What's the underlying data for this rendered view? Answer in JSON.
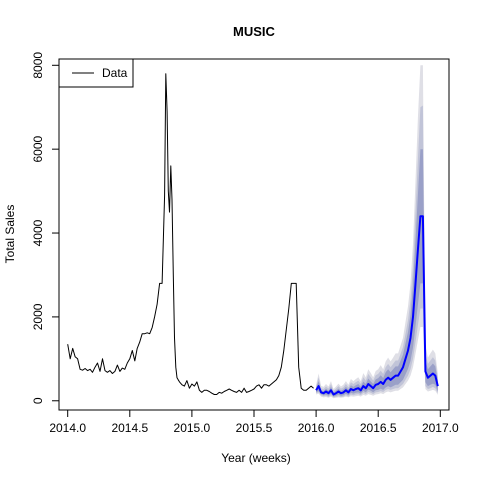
{
  "chart_data": {
    "type": "line",
    "title": "MUSIC",
    "xlabel": "Year (weeks)",
    "ylabel": "Total Sales",
    "xlim": [
      2013.93,
      2017.07
    ],
    "ylim": [
      -220,
      8150
    ],
    "xticks": [
      2014.0,
      2014.5,
      2015.0,
      2015.5,
      2016.0,
      2016.5,
      2017.0
    ],
    "xtick_labels": [
      "2014.0",
      "2014.5",
      "2015.0",
      "2015.5",
      "2016.0",
      "2016.5",
      "2017.0"
    ],
    "yticks": [
      0,
      2000,
      4000,
      6000,
      8000
    ],
    "ytick_labels": [
      "0",
      "2000",
      "4000",
      "6000",
      "8000"
    ],
    "grid": false,
    "legend": {
      "position": "top-left",
      "entries": [
        "Data"
      ]
    },
    "colors": {
      "data": "#000000",
      "forecast": "#0000ff",
      "band_inner": "#9aa0c8",
      "band_middle": "#c1c4d8",
      "band_outer": "#dfdfe6"
    },
    "series": [
      {
        "name": "Data",
        "x": [
          2014.0,
          2014.02,
          2014.04,
          2014.06,
          2014.08,
          2014.1,
          2014.12,
          2014.14,
          2014.16,
          2014.18,
          2014.2,
          2014.22,
          2014.24,
          2014.26,
          2014.28,
          2014.3,
          2014.32,
          2014.34,
          2014.36,
          2014.38,
          2014.4,
          2014.42,
          2014.44,
          2014.46,
          2014.48,
          2014.5,
          2014.52,
          2014.54,
          2014.56,
          2014.58,
          2014.6,
          2014.62,
          2014.64,
          2014.66,
          2014.68,
          2014.7,
          2014.72,
          2014.74,
          2014.76,
          2014.78,
          2014.79,
          2014.8,
          2014.81,
          2014.82,
          2014.83,
          2014.84,
          2014.85,
          2014.86,
          2014.87,
          2014.88,
          2014.89,
          2014.9,
          2014.92,
          2014.94,
          2014.96,
          2014.98,
          2015.0,
          2015.02,
          2015.04,
          2015.06,
          2015.08,
          2015.1,
          2015.12,
          2015.14,
          2015.16,
          2015.18,
          2015.2,
          2015.22,
          2015.24,
          2015.26,
          2015.28,
          2015.3,
          2015.32,
          2015.34,
          2015.36,
          2015.38,
          2015.4,
          2015.42,
          2015.44,
          2015.46,
          2015.48,
          2015.5,
          2015.52,
          2015.54,
          2015.56,
          2015.58,
          2015.6,
          2015.62,
          2015.64,
          2015.66,
          2015.68,
          2015.7,
          2015.72,
          2015.74,
          2015.76,
          2015.78,
          2015.8,
          2015.82,
          2015.84,
          2015.86,
          2015.88,
          2015.9,
          2015.92,
          2015.94,
          2015.96,
          2015.98
        ],
        "y": [
          1350,
          1000,
          1250,
          1050,
          1000,
          750,
          730,
          770,
          720,
          750,
          680,
          800,
          900,
          700,
          1000,
          720,
          680,
          720,
          650,
          700,
          850,
          700,
          780,
          750,
          900,
          1000,
          1200,
          950,
          1250,
          1400,
          1600,
          1600,
          1620,
          1600,
          1750,
          2000,
          2300,
          2800,
          2800,
          4900,
          7800,
          6900,
          5000,
          4500,
          5600,
          4800,
          3000,
          1500,
          800,
          550,
          500,
          450,
          380,
          350,
          480,
          300,
          400,
          350,
          450,
          250,
          200,
          250,
          250,
          220,
          180,
          150,
          150,
          200,
          180,
          220,
          250,
          280,
          250,
          220,
          200,
          250,
          200,
          300,
          200,
          220,
          250,
          280,
          350,
          380,
          300,
          380,
          380,
          350,
          400,
          450,
          500,
          600,
          800,
          1200,
          1700,
          2200,
          2800,
          2800,
          2800,
          800,
          300,
          250,
          250,
          300,
          350,
          300
        ]
      },
      {
        "name": "",
        "x": [
          2016.0,
          2016.02,
          2016.04,
          2016.06,
          2016.08,
          2016.1,
          2016.12,
          2016.14,
          2016.16,
          2016.18,
          2016.2,
          2016.22,
          2016.24,
          2016.26,
          2016.28,
          2016.3,
          2016.32,
          2016.34,
          2016.36,
          2016.38,
          2016.4,
          2016.42,
          2016.44,
          2016.46,
          2016.48,
          2016.5,
          2016.52,
          2016.54,
          2016.56,
          2016.58,
          2016.6,
          2016.62,
          2016.64,
          2016.66,
          2016.68,
          2016.7,
          2016.72,
          2016.74,
          2016.76,
          2016.78,
          2016.8,
          2016.82,
          2016.84,
          2016.86,
          2016.88,
          2016.9,
          2016.92,
          2016.94,
          2016.96,
          2016.98
        ],
        "y": [
          250,
          350,
          200,
          180,
          220,
          180,
          250,
          150,
          180,
          220,
          180,
          200,
          250,
          200,
          280,
          250,
          280,
          300,
          250,
          350,
          300,
          400,
          350,
          300,
          380,
          400,
          450,
          400,
          500,
          550,
          500,
          550,
          600,
          600,
          700,
          800,
          1000,
          1200,
          1500,
          2000,
          2800,
          3600,
          4400,
          4400,
          700,
          550,
          600,
          650,
          600,
          350
        ],
        "band_inner_lower": [
          200,
          230,
          160,
          130,
          150,
          120,
          170,
          100,
          120,
          150,
          120,
          130,
          170,
          130,
          190,
          170,
          190,
          200,
          170,
          240,
          200,
          270,
          240,
          200,
          250,
          260,
          290,
          260,
          320,
          350,
          320,
          350,
          380,
          380,
          440,
          500,
          630,
          760,
          950,
          1270,
          1780,
          2290,
          2800,
          2800,
          440,
          350,
          380,
          410,
          380,
          220
        ],
        "band_inner_upper": [
          300,
          470,
          240,
          230,
          290,
          240,
          330,
          200,
          240,
          290,
          240,
          270,
          330,
          270,
          370,
          330,
          370,
          400,
          330,
          460,
          400,
          530,
          460,
          400,
          510,
          540,
          610,
          540,
          680,
          750,
          680,
          750,
          820,
          820,
          960,
          1100,
          1370,
          1640,
          2050,
          2730,
          3820,
          4910,
          6000,
          6000,
          960,
          750,
          820,
          890,
          820,
          480
        ],
        "band_middle_lower": [
          180,
          200,
          130,
          110,
          120,
          90,
          130,
          80,
          90,
          110,
          90,
          100,
          130,
          100,
          150,
          130,
          150,
          160,
          130,
          190,
          160,
          210,
          190,
          160,
          200,
          210,
          230,
          210,
          260,
          280,
          260,
          280,
          300,
          300,
          350,
          400,
          500,
          600,
          750,
          1000,
          1400,
          1800,
          2200,
          2200,
          350,
          280,
          300,
          330,
          300,
          180
        ],
        "band_middle_upper": [
          330,
          560,
          300,
          280,
          340,
          290,
          400,
          240,
          290,
          350,
          290,
          320,
          400,
          320,
          440,
          400,
          440,
          480,
          400,
          560,
          480,
          640,
          560,
          480,
          610,
          640,
          720,
          640,
          800,
          880,
          800,
          880,
          960,
          960,
          1120,
          1280,
          1600,
          1920,
          2400,
          3200,
          4480,
          5760,
          7000,
          7040,
          1120,
          880,
          960,
          1040,
          960,
          560
        ],
        "band_outer_lower": [
          150,
          170,
          100,
          80,
          90,
          70,
          100,
          60,
          70,
          80,
          70,
          80,
          100,
          80,
          110,
          100,
          110,
          120,
          100,
          140,
          120,
          160,
          140,
          120,
          150,
          160,
          180,
          160,
          200,
          220,
          200,
          220,
          240,
          240,
          280,
          320,
          400,
          480,
          600,
          800,
          1120,
          1440,
          1760,
          1760,
          280,
          220,
          240,
          260,
          240,
          140
        ],
        "band_outer_upper": [
          380,
          650,
          360,
          330,
          400,
          340,
          470,
          280,
          340,
          410,
          340,
          380,
          470,
          380,
          520,
          470,
          520,
          560,
          470,
          660,
          560,
          750,
          660,
          560,
          710,
          750,
          850,
          750,
          940,
          1030,
          940,
          1030,
          1130,
          1130,
          1320,
          1500,
          1880,
          2250,
          2800,
          3750,
          5250,
          6750,
          8000,
          8000,
          1320,
          1030,
          1130,
          1220,
          1130,
          660
        ]
      }
    ]
  }
}
